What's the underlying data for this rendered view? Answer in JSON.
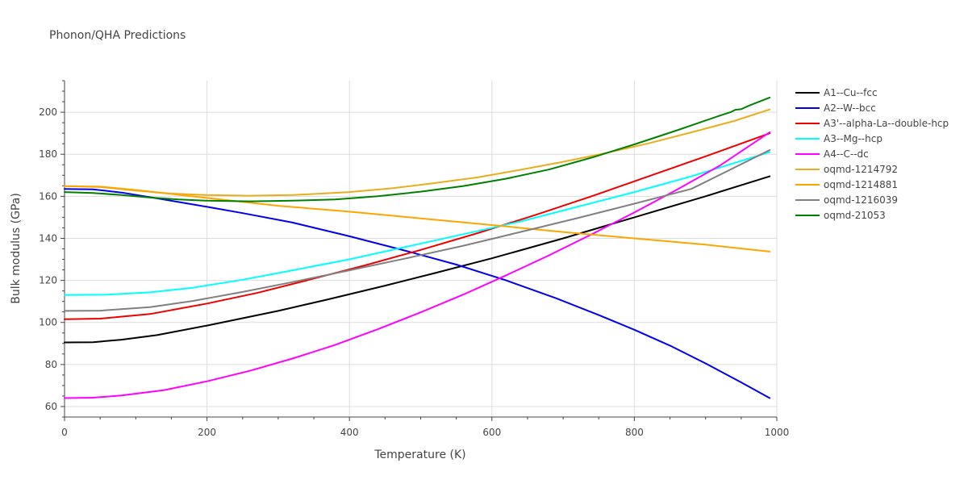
{
  "chart_data": {
    "type": "line",
    "title": "Phonon/QHA Predictions",
    "xlabel": "Temperature (K)",
    "ylabel": "Bulk modulus (GPa)",
    "xlim": [
      0,
      1000
    ],
    "ylim": [
      55,
      215
    ],
    "xticks": [
      0,
      200,
      400,
      600,
      800,
      1000
    ],
    "yticks": [
      60,
      80,
      100,
      120,
      140,
      160,
      180,
      200
    ],
    "grid": true,
    "legend_position": "right",
    "series": [
      {
        "name": "A1--Cu--fcc",
        "color": "#000000",
        "x": [
          0,
          40,
          80,
          130,
          200,
          250,
          300,
          370,
          450,
          520,
          600,
          700,
          800,
          900,
          990
        ],
        "y": [
          90.5,
          90.6,
          91.8,
          94,
          98.5,
          102,
          105.5,
          111,
          117.5,
          123.5,
          130.5,
          140,
          150,
          160,
          169.5
        ]
      },
      {
        "name": "A2--W--bcc",
        "color": "#0000ee",
        "x": [
          0,
          40,
          80,
          130,
          200,
          250,
          320,
          400,
          480,
          550,
          620,
          690,
          750,
          800,
          850,
          900,
          950,
          990
        ],
        "y": [
          163.5,
          163.3,
          161.8,
          159,
          155,
          152,
          147.5,
          141,
          134,
          127.5,
          120,
          111.5,
          103.5,
          96.5,
          89,
          80.5,
          71.5,
          64
        ]
      },
      {
        "name": "A3'--alpha-La--double-hcp",
        "color": "#ee0000",
        "x": [
          0,
          50,
          120,
          200,
          270,
          340,
          420,
          500,
          580,
          660,
          740,
          820,
          900,
          990
        ],
        "y": [
          101.5,
          101.8,
          104,
          109,
          114,
          120,
          127,
          134.5,
          142.5,
          151,
          160,
          169.5,
          179,
          190
        ]
      },
      {
        "name": "A3--Mg--hcp",
        "color": "#00ffff",
        "x": [
          0,
          60,
          120,
          180,
          250,
          320,
          400,
          480,
          560,
          640,
          720,
          800,
          880,
          990
        ],
        "y": [
          113,
          113.2,
          114.3,
          116.5,
          120.3,
          124.8,
          130,
          136,
          142,
          148,
          155,
          162,
          169.5,
          181
        ]
      },
      {
        "name": "A4--C--dc",
        "color": "#ff00ff",
        "x": [
          0,
          40,
          80,
          140,
          200,
          260,
          320,
          380,
          440,
          500,
          560,
          620,
          680,
          740,
          800,
          860,
          920,
          990
        ],
        "y": [
          64,
          64.2,
          65.3,
          67.8,
          72,
          77,
          82.8,
          89.3,
          96.8,
          104.8,
          113.3,
          122.4,
          131.9,
          141.9,
          152.3,
          163.2,
          174.6,
          190.5
        ]
      },
      {
        "name": "oqmd-1214792",
        "color": "#ecad1d",
        "x": [
          0,
          50,
          100,
          150,
          200,
          260,
          320,
          400,
          460,
          520,
          580,
          640,
          700,
          760,
          820,
          880,
          940,
          990
        ],
        "y": [
          164.8,
          164.4,
          162.7,
          161.3,
          160.6,
          160.3,
          160.6,
          162,
          163.8,
          166.3,
          169,
          172.6,
          176.4,
          180.6,
          185.2,
          190.4,
          195.8,
          201.3
        ]
      },
      {
        "name": "oqmd-1214881",
        "color": "#ffa500",
        "x": [
          0,
          50,
          100,
          200,
          300,
          400,
          500,
          600,
          700,
          800,
          900,
          990
        ],
        "y": [
          164.8,
          164.6,
          163,
          159.2,
          155.5,
          152.7,
          149.5,
          146.3,
          143,
          140,
          137,
          133.7
        ]
      },
      {
        "name": "oqmd-1216039",
        "color": "#808080",
        "x": [
          0,
          50,
          120,
          180,
          250,
          320,
          400,
          480,
          560,
          640,
          720,
          800,
          880,
          990
        ],
        "y": [
          105.5,
          105.6,
          107.3,
          110.2,
          114.5,
          119.2,
          124.8,
          130.5,
          136.5,
          143,
          149.6,
          156.5,
          163.5,
          182
        ]
      },
      {
        "name": "oqmd-21053",
        "color": "#008000",
        "x": [
          0,
          40,
          80,
          120,
          160,
          200,
          260,
          320,
          380,
          440,
          500,
          560,
          620,
          680,
          740,
          800,
          860,
          920,
          935,
          942,
          950,
          960,
          990
        ],
        "y": [
          162,
          161.6,
          160.6,
          159.4,
          158.5,
          157.9,
          157.6,
          157.9,
          158.5,
          160,
          162.2,
          164.9,
          168.4,
          172.7,
          178.4,
          184.7,
          191.4,
          198.4,
          200,
          201.2,
          201.4,
          203,
          207
        ]
      }
    ]
  }
}
